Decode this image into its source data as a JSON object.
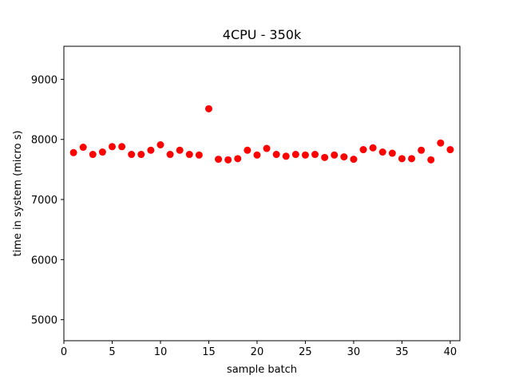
{
  "chart_data": {
    "type": "scatter",
    "title": "4CPU - 350k",
    "xlabel": "sample batch",
    "ylabel": "time in system (micro s)",
    "xlim": [
      0,
      41
    ],
    "ylim": [
      4650,
      9550
    ],
    "xticks": [
      0,
      5,
      10,
      15,
      20,
      25,
      30,
      35,
      40
    ],
    "yticks": [
      5000,
      6000,
      7000,
      8000,
      9000
    ],
    "grid": false,
    "marker_color": "#ff0000",
    "series": [
      {
        "x": [
          1,
          2,
          3,
          4,
          5,
          6,
          7,
          8,
          9,
          10,
          11,
          12,
          13,
          14,
          15,
          16,
          17,
          18,
          19,
          20,
          21,
          22,
          23,
          24,
          25,
          26,
          27,
          28,
          29,
          30,
          31,
          32,
          33,
          34,
          35,
          36,
          37,
          38,
          39,
          40
        ],
        "y": [
          7780,
          7870,
          7750,
          7790,
          7880,
          7880,
          7750,
          7750,
          7820,
          7910,
          7750,
          7820,
          7750,
          7740,
          8510,
          7670,
          7660,
          7680,
          7820,
          7740,
          7850,
          7750,
          7720,
          7750,
          7740,
          7750,
          7700,
          7740,
          7710,
          7670,
          7830,
          7860,
          7790,
          7770,
          7680,
          7680,
          7820,
          7660,
          7940,
          7830
        ]
      }
    ]
  }
}
